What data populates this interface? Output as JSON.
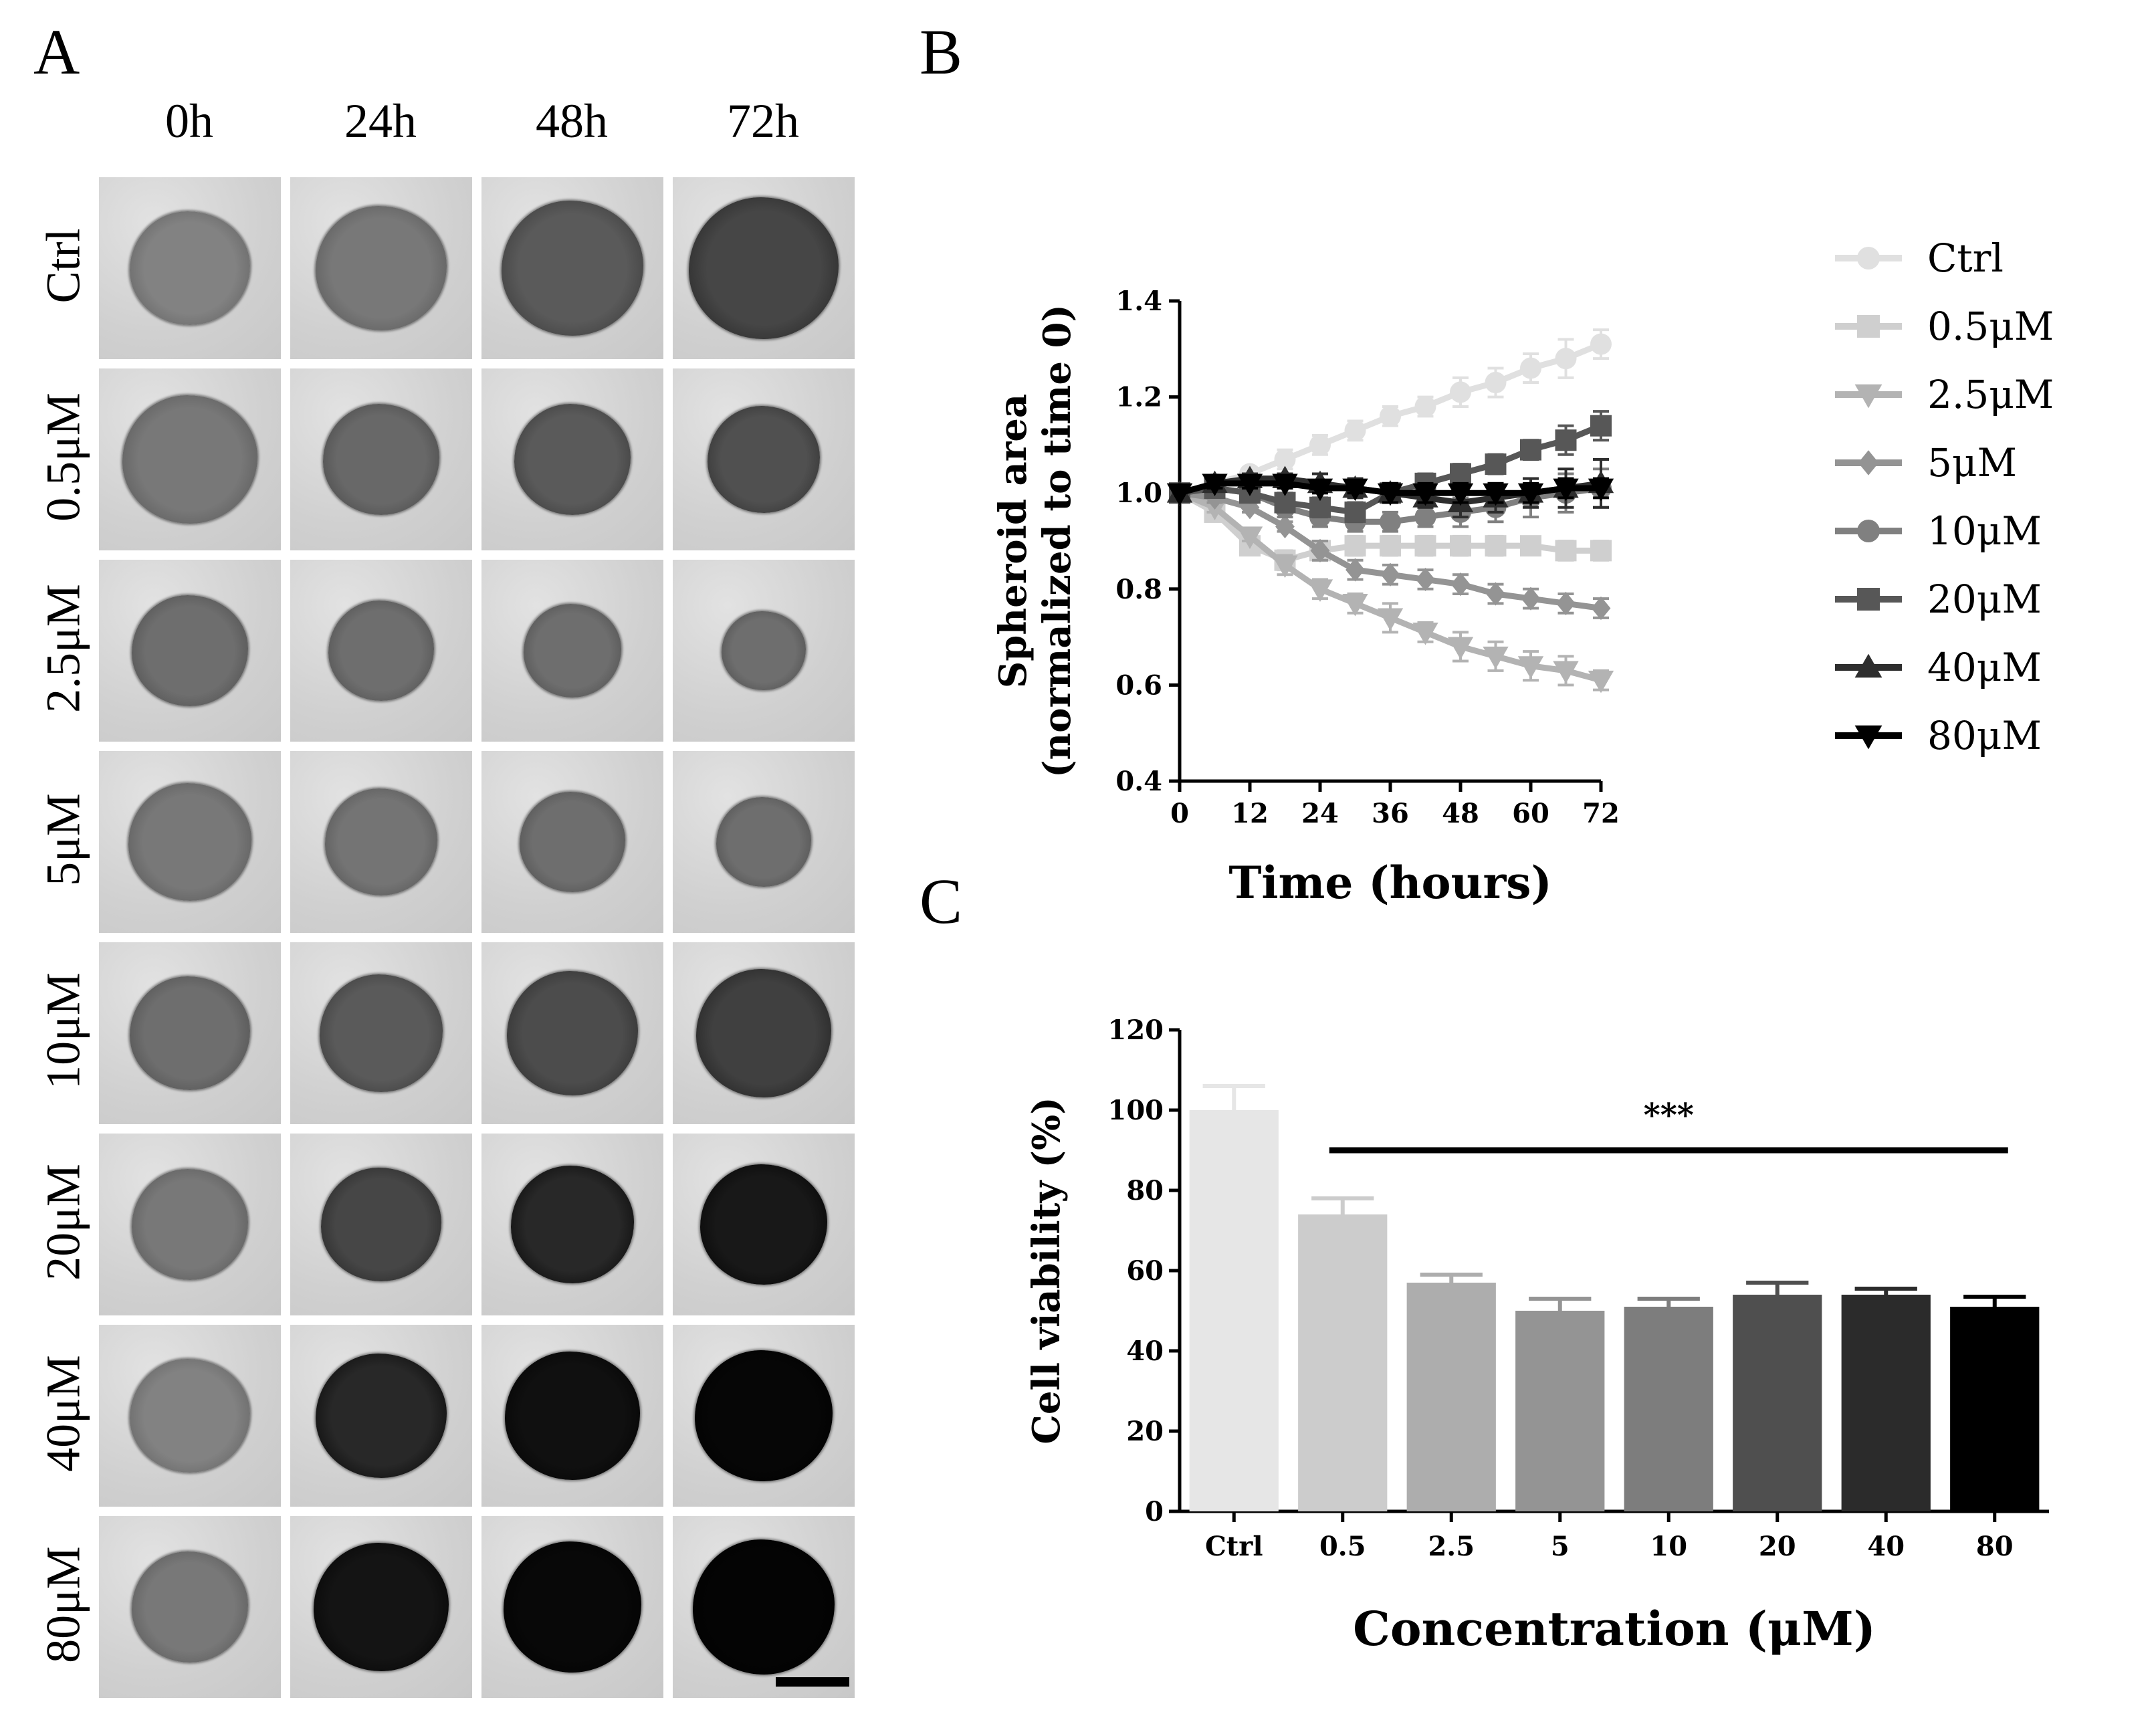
{
  "panel_a": {
    "letter": "A",
    "columns": [
      "0h",
      "24h",
      "48h",
      "72h"
    ],
    "rows": [
      "Ctrl",
      "0.5μM",
      "2.5μM",
      "5μM",
      "10μM",
      "20μM",
      "40μM",
      "80μM"
    ],
    "spheroid_darkness": [
      [
        0.35,
        0.4,
        0.55,
        0.65
      ],
      [
        0.4,
        0.48,
        0.55,
        0.6
      ],
      [
        0.45,
        0.45,
        0.45,
        0.45
      ],
      [
        0.4,
        0.42,
        0.45,
        0.45
      ],
      [
        0.45,
        0.55,
        0.62,
        0.68
      ],
      [
        0.4,
        0.65,
        0.8,
        0.88
      ],
      [
        0.35,
        0.8,
        0.92,
        0.97
      ],
      [
        0.4,
        0.9,
        0.96,
        0.98
      ]
    ],
    "spheroid_size": [
      [
        0.66,
        0.72,
        0.78,
        0.82
      ],
      [
        0.74,
        0.64,
        0.64,
        0.62
      ],
      [
        0.64,
        0.58,
        0.54,
        0.46
      ],
      [
        0.68,
        0.62,
        0.58,
        0.52
      ],
      [
        0.66,
        0.68,
        0.72,
        0.74
      ],
      [
        0.64,
        0.66,
        0.68,
        0.7
      ],
      [
        0.66,
        0.72,
        0.74,
        0.76
      ],
      [
        0.64,
        0.74,
        0.76,
        0.78
      ]
    ]
  },
  "panel_b": {
    "letter": "B"
  },
  "panel_c": {
    "letter": "C"
  },
  "chart_data": [
    {
      "type": "line",
      "xlabel": "Time (hours)",
      "ylabel_line1": "Spheroid area",
      "ylabel_line2": "(normalized to time 0)",
      "xlim": [
        0,
        72
      ],
      "ylim": [
        0.4,
        1.4
      ],
      "xticks": [
        0,
        12,
        24,
        36,
        48,
        60,
        72
      ],
      "yticks": [
        0.4,
        0.6,
        0.8,
        1.0,
        1.2,
        1.4
      ],
      "ytick_labels": [
        "0.4",
        "0.6",
        "0.8",
        "1.0",
        "1.2",
        "1.4"
      ],
      "x": [
        0,
        6,
        12,
        18,
        24,
        30,
        36,
        42,
        48,
        54,
        60,
        66,
        72
      ],
      "legend_position": "right",
      "series": [
        {
          "name": "Ctrl",
          "color": "#e0e0e0",
          "marker": "circle",
          "values": [
            1.0,
            1.02,
            1.04,
            1.07,
            1.1,
            1.13,
            1.16,
            1.18,
            1.21,
            1.23,
            1.26,
            1.28,
            1.31
          ],
          "errors": [
            0,
            0.01,
            0.01,
            0.02,
            0.02,
            0.02,
            0.02,
            0.02,
            0.03,
            0.03,
            0.03,
            0.04,
            0.03
          ]
        },
        {
          "name": "0.5μM",
          "color": "#cfcfcf",
          "marker": "square",
          "values": [
            1.0,
            0.96,
            0.89,
            0.86,
            0.88,
            0.89,
            0.89,
            0.89,
            0.89,
            0.89,
            0.89,
            0.88,
            0.88
          ],
          "errors": [
            0,
            0.01,
            0.01,
            0.02,
            0.02,
            0.02,
            0.02,
            0.02,
            0.02,
            0.02,
            0.01,
            0.02,
            0.02
          ]
        },
        {
          "name": "2.5μM",
          "color": "#b3b3b3",
          "marker": "triangle-down",
          "values": [
            1.0,
            0.97,
            0.91,
            0.85,
            0.8,
            0.77,
            0.74,
            0.71,
            0.68,
            0.66,
            0.64,
            0.63,
            0.61
          ],
          "errors": [
            0,
            0.01,
            0.01,
            0.02,
            0.02,
            0.02,
            0.03,
            0.02,
            0.03,
            0.03,
            0.03,
            0.03,
            0.02
          ]
        },
        {
          "name": "5μM",
          "color": "#949494",
          "marker": "diamond",
          "values": [
            1.0,
            0.99,
            0.97,
            0.93,
            0.88,
            0.84,
            0.83,
            0.82,
            0.81,
            0.79,
            0.78,
            0.77,
            0.76
          ],
          "errors": [
            0,
            0.01,
            0.01,
            0.01,
            0.02,
            0.02,
            0.02,
            0.02,
            0.02,
            0.02,
            0.02,
            0.02,
            0.02
          ]
        },
        {
          "name": "10μM",
          "color": "#808080",
          "marker": "circle",
          "values": [
            1.0,
            1.01,
            1.0,
            0.97,
            0.95,
            0.94,
            0.94,
            0.95,
            0.96,
            0.97,
            0.99,
            1.0,
            1.01
          ],
          "errors": [
            0,
            0.01,
            0.01,
            0.02,
            0.02,
            0.02,
            0.02,
            0.02,
            0.03,
            0.03,
            0.04,
            0.04,
            0.04
          ]
        },
        {
          "name": "20μM",
          "color": "#575757",
          "marker": "square",
          "values": [
            1.0,
            1.01,
            1.0,
            0.98,
            0.97,
            0.96,
            1.0,
            1.02,
            1.04,
            1.06,
            1.09,
            1.11,
            1.14
          ],
          "errors": [
            0,
            0.01,
            0.01,
            0.02,
            0.02,
            0.02,
            0.02,
            0.02,
            0.02,
            0.02,
            0.02,
            0.03,
            0.03
          ]
        },
        {
          "name": "40μM",
          "color": "#2e2e2e",
          "marker": "triangle-up",
          "values": [
            1.0,
            1.02,
            1.03,
            1.03,
            1.02,
            1.01,
            1.0,
            0.99,
            0.98,
            0.99,
            1.0,
            1.01,
            1.02
          ],
          "errors": [
            0,
            0.01,
            0.01,
            0.01,
            0.02,
            0.02,
            0.02,
            0.02,
            0.03,
            0.03,
            0.03,
            0.04,
            0.05
          ]
        },
        {
          "name": "80μM",
          "color": "#000000",
          "marker": "triangle-down",
          "values": [
            1.0,
            1.02,
            1.02,
            1.02,
            1.01,
            1.01,
            1.0,
            1.0,
            1.0,
            1.0,
            1.0,
            1.01,
            1.01
          ],
          "errors": [
            0,
            0.01,
            0.01,
            0.01,
            0.01,
            0.01,
            0.02,
            0.02,
            0.02,
            0.02,
            0.02,
            0.02,
            0.02
          ]
        }
      ]
    },
    {
      "type": "bar",
      "xlabel": "Concentration (μM)",
      "ylabel": "Cell viability (%)",
      "ylim": [
        0,
        120
      ],
      "yticks": [
        0,
        20,
        40,
        60,
        80,
        100,
        120
      ],
      "categories": [
        "Ctrl",
        "0.5",
        "2.5",
        "5",
        "10",
        "20",
        "40",
        "80"
      ],
      "values": [
        100,
        74,
        57,
        50,
        51,
        54,
        54,
        51
      ],
      "errors": [
        6,
        4,
        2,
        3,
        2,
        3,
        1.5,
        2.5
      ],
      "colors": [
        "#e6e6e6",
        "#cccccc",
        "#adadad",
        "#949494",
        "#7d7d7d",
        "#4f4f4f",
        "#2b2b2b",
        "#000000"
      ],
      "significance": "***"
    }
  ]
}
